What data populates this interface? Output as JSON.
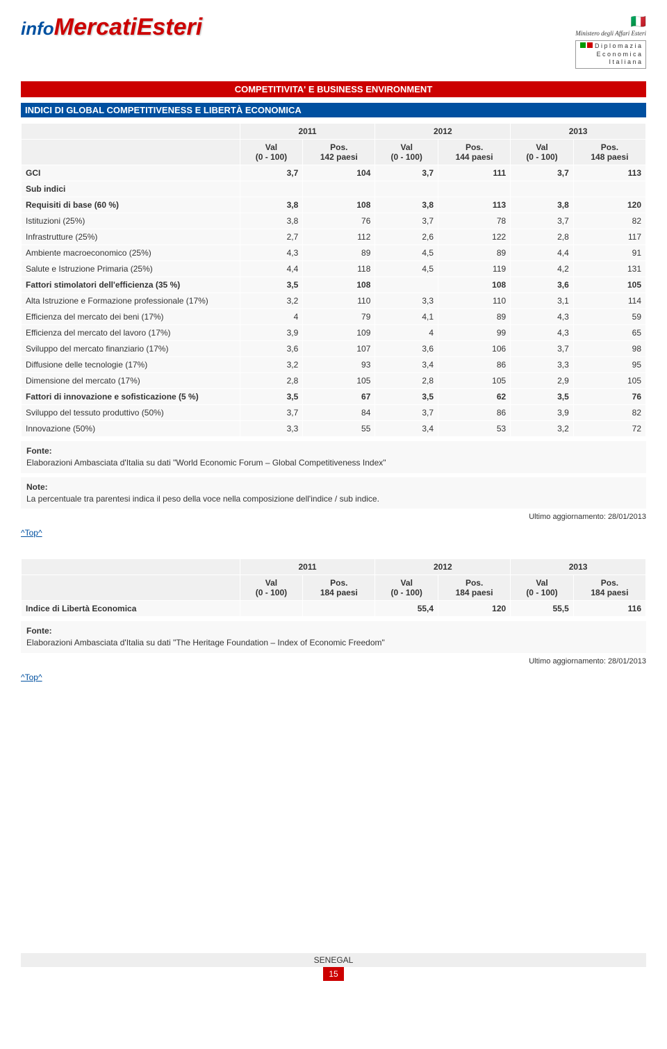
{
  "logo": {
    "info": "info",
    "mercati": "MercatiEsteri"
  },
  "ministry": {
    "name": "Ministero degli Affari Esteri",
    "line1": "D i p l o m a z i a",
    "line2": "E c o n o m i c a",
    "line3": "I t a l i a n a"
  },
  "redbar": "COMPETITIVITA' E BUSINESS ENVIRONMENT",
  "bluebar": "INDICI DI GLOBAL COMPETITIVENESS E LIBERTÀ ECONOMICA",
  "table1": {
    "years": [
      "2011",
      "2012",
      "2013"
    ],
    "val_label": "Val\n(0 - 100)",
    "pos_labels": [
      "Pos.\n142 paesi",
      "Pos.\n144 paesi",
      "Pos.\n148 paesi"
    ],
    "rows": [
      {
        "label": "GCI",
        "vals": [
          "3,7",
          "104",
          "3,7",
          "111",
          "3,7",
          "113"
        ],
        "bold": true
      },
      {
        "label": "Sub indici",
        "vals": [
          "",
          "",
          "",
          "",
          "",
          ""
        ],
        "bold": true
      },
      {
        "label": "Requisiti di base (60 %)",
        "vals": [
          "3,8",
          "108",
          "3,8",
          "113",
          "3,8",
          "120"
        ],
        "bold": true
      },
      {
        "label": "Istituzioni (25%)",
        "vals": [
          "3,8",
          "76",
          "3,7",
          "78",
          "3,7",
          "82"
        ],
        "bold": false
      },
      {
        "label": "Infrastrutture (25%)",
        "vals": [
          "2,7",
          "112",
          "2,6",
          "122",
          "2,8",
          "117"
        ],
        "bold": false
      },
      {
        "label": "Ambiente macroeconomico (25%)",
        "vals": [
          "4,3",
          "89",
          "4,5",
          "89",
          "4,4",
          "91"
        ],
        "bold": false
      },
      {
        "label": "Salute e Istruzione Primaria (25%)",
        "vals": [
          "4,4",
          "118",
          "4,5",
          "119",
          "4,2",
          "131"
        ],
        "bold": false
      },
      {
        "label": "Fattori stimolatori dell'efficienza (35 %)",
        "vals": [
          "3,5",
          "108",
          "",
          "108",
          "3,6",
          "105"
        ],
        "bold": true
      },
      {
        "label": "Alta Istruzione e Formazione professionale (17%)",
        "vals": [
          "3,2",
          "110",
          "3,3",
          "110",
          "3,1",
          "114"
        ],
        "bold": false
      },
      {
        "label": "Efficienza del mercato dei beni (17%)",
        "vals": [
          "4",
          "79",
          "4,1",
          "89",
          "4,3",
          "59"
        ],
        "bold": false
      },
      {
        "label": "Efficienza del mercato del lavoro (17%)",
        "vals": [
          "3,9",
          "109",
          "4",
          "99",
          "4,3",
          "65"
        ],
        "bold": false
      },
      {
        "label": "Sviluppo del mercato finanziario (17%)",
        "vals": [
          "3,6",
          "107",
          "3,6",
          "106",
          "3,7",
          "98"
        ],
        "bold": false
      },
      {
        "label": "Diffusione delle tecnologie (17%)",
        "vals": [
          "3,2",
          "93",
          "3,4",
          "86",
          "3,3",
          "95"
        ],
        "bold": false
      },
      {
        "label": "Dimensione del mercato (17%)",
        "vals": [
          "2,8",
          "105",
          "2,8",
          "105",
          "2,9",
          "105"
        ],
        "bold": false
      },
      {
        "label": "Fattori di innovazione e sofisticazione (5 %)",
        "vals": [
          "3,5",
          "67",
          "3,5",
          "62",
          "3,5",
          "76"
        ],
        "bold": true
      },
      {
        "label": "Sviluppo del tessuto produttivo (50%)",
        "vals": [
          "3,7",
          "84",
          "3,7",
          "86",
          "3,9",
          "82"
        ],
        "bold": false
      },
      {
        "label": "Innovazione (50%)",
        "vals": [
          "3,3",
          "55",
          "3,4",
          "53",
          "3,2",
          "72"
        ],
        "bold": false
      }
    ]
  },
  "fonte1_label": "Fonte:",
  "fonte1_text": "Elaborazioni Ambasciata d'Italia su dati \"World Economic Forum – Global Competitiveness Index\"",
  "note1_label": "Note:",
  "note1_text": "La percentuale tra parentesi indica il peso della voce nella composizione dell'indice / sub indice.",
  "update1": "Ultimo aggiornamento: 28/01/2013",
  "toplink": "^Top^",
  "table2": {
    "years": [
      "2011",
      "2012",
      "2013"
    ],
    "val_label": "Val\n(0 - 100)",
    "pos_labels": [
      "Pos.\n184 paesi",
      "Pos.\n184 paesi",
      "Pos.\n184 paesi"
    ],
    "row": {
      "label": "Indice di Libertà Economica",
      "vals": [
        "",
        "",
        "55,4",
        "120",
        "55,5",
        "116"
      ],
      "bold": true
    }
  },
  "fonte2_label": "Fonte:",
  "fonte2_text": "Elaborazioni Ambasciata d'Italia su dati \"The Heritage Foundation – Index of Economic Freedom\"",
  "update2": "Ultimo aggiornamento: 28/01/2013",
  "footer": {
    "country": "SENEGAL",
    "page": "15"
  }
}
